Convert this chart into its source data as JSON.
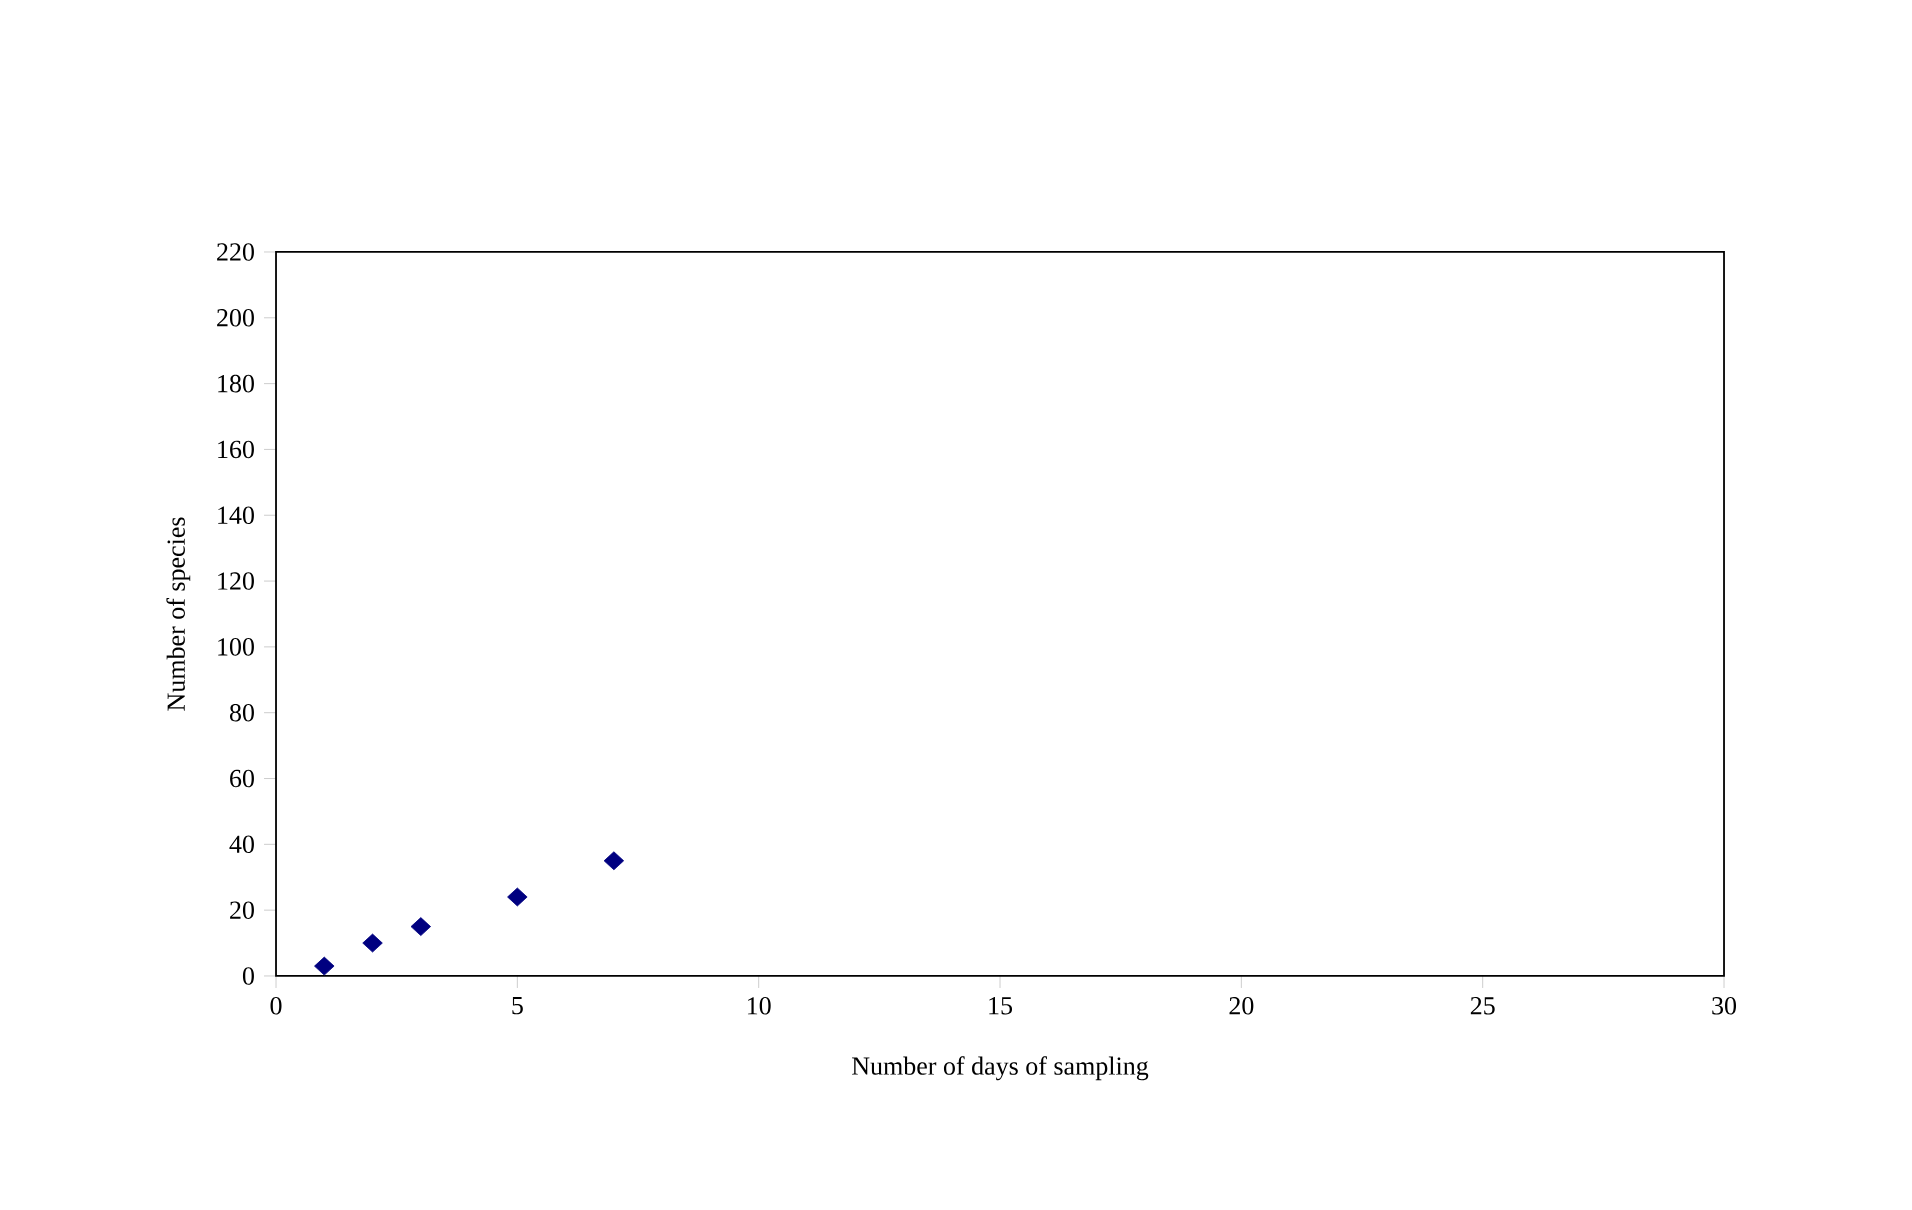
{
  "chart_data": {
    "type": "scatter",
    "xlabel": "Number of days of sampling",
    "ylabel": "Number of species",
    "x": [
      1,
      2,
      3,
      5,
      7
    ],
    "series": [
      {
        "color": "#000080",
        "values": [
          3,
          10,
          15,
          24,
          35
        ]
      }
    ],
    "marker": "diamond",
    "xlim": [
      0,
      30
    ],
    "xticks": [
      0,
      5,
      10,
      15,
      20,
      25,
      30
    ],
    "ylim": [
      0,
      220
    ],
    "yticks": [
      0,
      20,
      40,
      60,
      80,
      100,
      120,
      140,
      160,
      180,
      200,
      220
    ]
  }
}
